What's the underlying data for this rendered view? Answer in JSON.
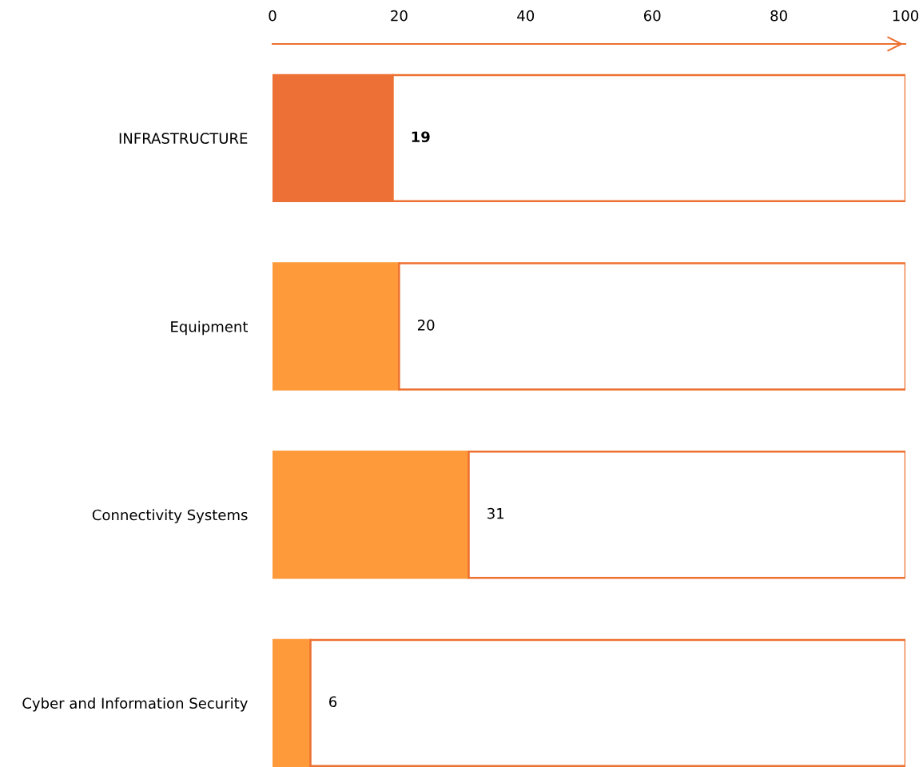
{
  "chart_data": {
    "type": "bar",
    "orientation": "horizontal",
    "stacked": true,
    "categories": [
      "INFRASTRUCTURE",
      "Equipment",
      "Connectivity Systems",
      "Cyber and Information Security"
    ],
    "series": [
      {
        "colors": [
          "#ed7036",
          "#ff9a3b",
          "#ff9a3b",
          "#ff9a3b"
        ],
        "values": [
          19,
          20,
          31,
          6
        ],
        "value_labels": [
          "19",
          "20",
          "31",
          "6"
        ]
      },
      {
        "color": "#ffffff",
        "values": [
          81,
          80,
          69,
          94
        ]
      }
    ],
    "xlim": [
      0,
      100
    ],
    "xticks": [
      0,
      20,
      40,
      60,
      80,
      100
    ]
  }
}
